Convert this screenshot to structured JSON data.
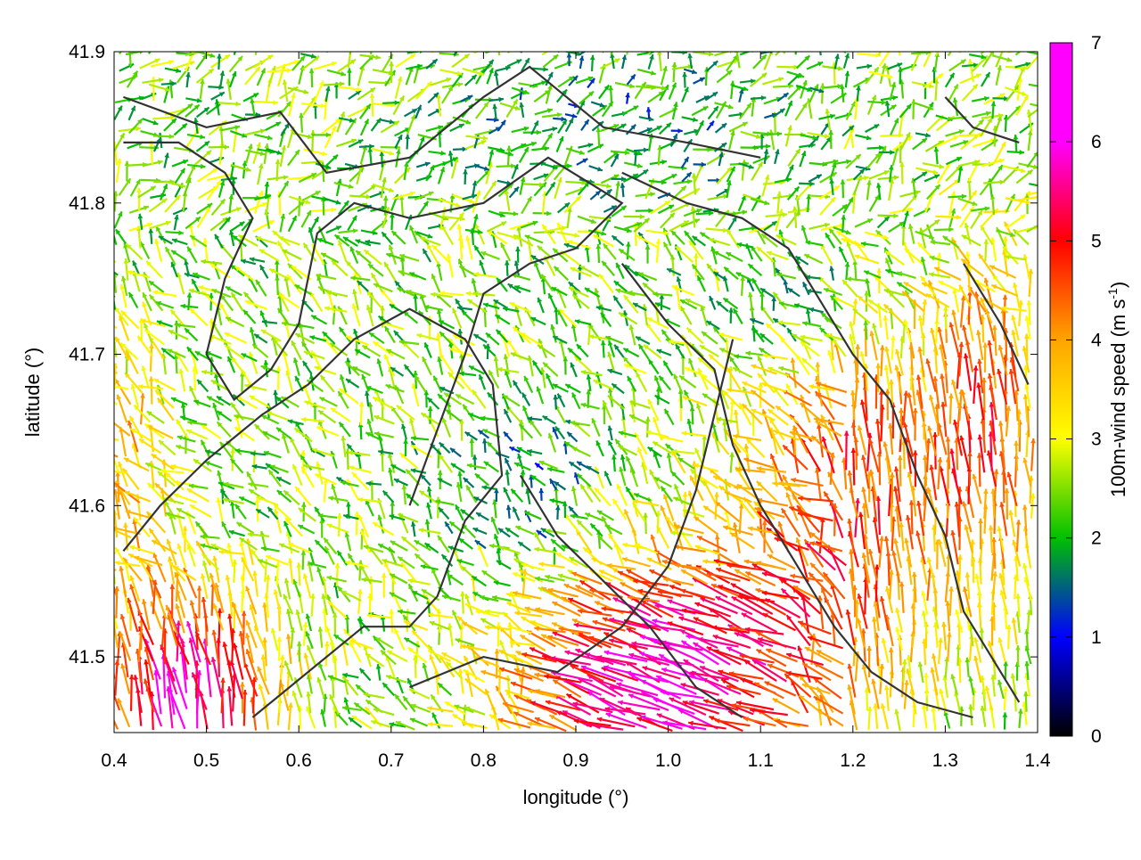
{
  "chart_data": {
    "type": "vector-field",
    "title": "",
    "xlabel": "longitude (°)",
    "ylabel": "latitude (°)",
    "xlim": [
      0.4,
      1.4
    ],
    "ylim": [
      41.45,
      41.9
    ],
    "xticks": [
      "0.4",
      "0.5",
      "0.6",
      "0.7",
      "0.8",
      "0.9",
      "1.0",
      "1.1",
      "1.2",
      "1.3",
      "1.4"
    ],
    "yticks": [
      "41.5",
      "41.6",
      "41.7",
      "41.8",
      "41.9"
    ],
    "colorbar": {
      "label": "100m-wind speed (m s",
      "label_superscript": "-1",
      "label_close": ")",
      "range": [
        0,
        7
      ],
      "ticks": [
        "0",
        "1",
        "2",
        "3",
        "4",
        "5",
        "6",
        "7"
      ],
      "palette": [
        "#000000",
        "#0000ff",
        "#00c000",
        "#ffff00",
        "#ffa500",
        "#ff0000",
        "#ff00ff"
      ]
    },
    "grid": false,
    "legend": "none",
    "field_description": "Wind vectors on a ~0.01° grid; speeds mostly 2-4 m/s in the north, 5-7 m/s in the south-east and south-west",
    "contour_color": "#333333",
    "contours": [
      [
        [
          0.41,
          41.87
        ],
        [
          0.5,
          41.85
        ],
        [
          0.58,
          41.86
        ],
        [
          0.63,
          41.82
        ],
        [
          0.72,
          41.83
        ],
        [
          0.8,
          41.87
        ],
        [
          0.85,
          41.89
        ],
        [
          0.93,
          41.85
        ],
        [
          1.02,
          41.84
        ],
        [
          1.1,
          41.83
        ]
      ],
      [
        [
          0.41,
          41.84
        ],
        [
          0.47,
          41.84
        ],
        [
          0.52,
          41.82
        ],
        [
          0.55,
          41.79
        ],
        [
          0.52,
          41.75
        ],
        [
          0.5,
          41.7
        ],
        [
          0.53,
          41.67
        ],
        [
          0.57,
          41.69
        ],
        [
          0.6,
          41.72
        ],
        [
          0.62,
          41.78
        ],
        [
          0.66,
          41.8
        ],
        [
          0.72,
          41.79
        ],
        [
          0.8,
          41.8
        ],
        [
          0.87,
          41.83
        ],
        [
          0.95,
          41.8
        ],
        [
          0.9,
          41.77
        ],
        [
          0.85,
          41.76
        ],
        [
          0.8,
          41.74
        ],
        [
          0.78,
          41.7
        ],
        [
          0.75,
          41.65
        ],
        [
          0.72,
          41.6
        ]
      ],
      [
        [
          0.41,
          41.57
        ],
        [
          0.45,
          41.6
        ],
        [
          0.5,
          41.63
        ],
        [
          0.56,
          41.66
        ],
        [
          0.61,
          41.68
        ],
        [
          0.66,
          41.71
        ],
        [
          0.72,
          41.73
        ],
        [
          0.78,
          41.71
        ],
        [
          0.81,
          41.68
        ],
        [
          0.82,
          41.62
        ],
        [
          0.78,
          41.59
        ],
        [
          0.75,
          41.54
        ],
        [
          0.72,
          41.52
        ],
        [
          0.67,
          41.52
        ],
        [
          0.63,
          41.5
        ],
        [
          0.59,
          41.48
        ],
        [
          0.55,
          41.46
        ]
      ],
      [
        [
          0.95,
          41.82
        ],
        [
          1.02,
          41.8
        ],
        [
          1.08,
          41.79
        ],
        [
          1.13,
          41.77
        ],
        [
          1.17,
          41.73
        ],
        [
          1.2,
          41.7
        ],
        [
          1.24,
          41.67
        ],
        [
          1.27,
          41.62
        ],
        [
          1.3,
          41.58
        ],
        [
          1.32,
          41.53
        ],
        [
          1.35,
          41.5
        ],
        [
          1.38,
          41.47
        ]
      ],
      [
        [
          0.95,
          41.76
        ],
        [
          1.0,
          41.72
        ],
        [
          1.05,
          41.69
        ],
        [
          1.07,
          41.64
        ],
        [
          1.1,
          41.6
        ],
        [
          1.14,
          41.56
        ],
        [
          1.18,
          41.52
        ],
        [
          1.22,
          41.49
        ],
        [
          1.27,
          41.47
        ],
        [
          1.33,
          41.46
        ]
      ],
      [
        [
          0.72,
          41.48
        ],
        [
          0.8,
          41.5
        ],
        [
          0.88,
          41.49
        ],
        [
          0.95,
          41.52
        ],
        [
          1.0,
          41.56
        ],
        [
          1.03,
          41.61
        ],
        [
          1.05,
          41.66
        ],
        [
          1.07,
          41.71
        ]
      ],
      [
        [
          0.84,
          41.62
        ],
        [
          0.88,
          41.58
        ],
        [
          0.93,
          41.55
        ],
        [
          0.98,
          41.52
        ],
        [
          1.03,
          41.48
        ],
        [
          1.08,
          41.46
        ]
      ],
      [
        [
          1.3,
          41.87
        ],
        [
          1.33,
          41.85
        ],
        [
          1.38,
          41.84
        ]
      ],
      [
        [
          1.32,
          41.76
        ],
        [
          1.36,
          41.72
        ],
        [
          1.39,
          41.68
        ]
      ]
    ]
  }
}
